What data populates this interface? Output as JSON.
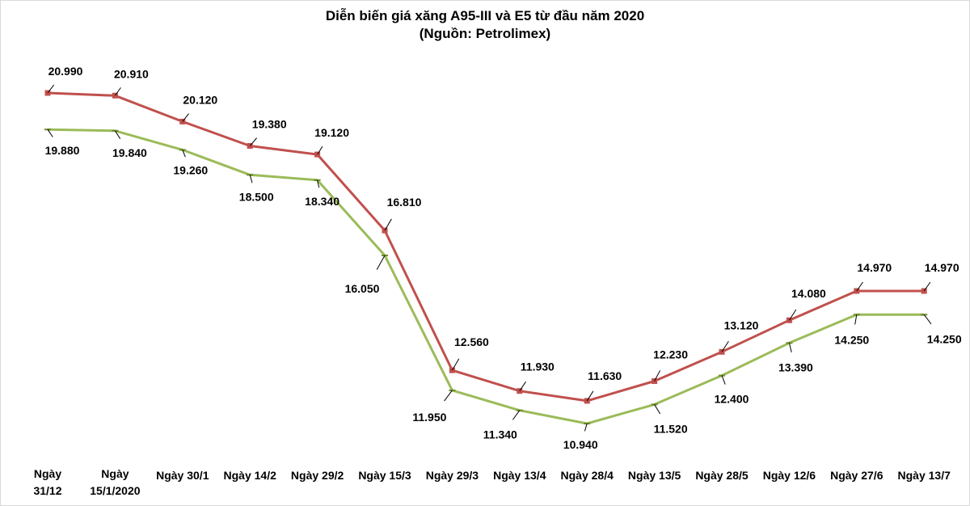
{
  "chart_data": {
    "type": "line",
    "title": "Diễn biến giá xăng A95-III  và E5 từ đầu năm 2020",
    "subtitle": "(Nguồn:  Petrolimex)",
    "categories": [
      [
        "Ngày",
        "31/12"
      ],
      [
        "Ngày",
        "15/1/2020"
      ],
      [
        "Ngày 30/1"
      ],
      [
        "Ngày 14/2"
      ],
      [
        "Ngày 29/2"
      ],
      [
        "Ngày 15/3"
      ],
      [
        "Ngày 29/3"
      ],
      [
        "Ngày 13/4"
      ],
      [
        "Ngày 28/4"
      ],
      [
        "Ngày 13/5"
      ],
      [
        "Ngày 28/5"
      ],
      [
        "Ngày 12/6"
      ],
      [
        "Ngày 27/6"
      ],
      [
        "Ngày 13/7"
      ]
    ],
    "ylim": [
      10000,
      21000
    ],
    "series": [
      {
        "name": "A95-III",
        "color": "#C0504D",
        "marker": "square",
        "values": [
          20990,
          20910,
          20120,
          19380,
          19120,
          16810,
          12560,
          11930,
          11630,
          12230,
          13120,
          14080,
          14970,
          14970
        ],
        "labels": [
          "20.990",
          "20.910",
          "20.120",
          "19.380",
          "19.120",
          "16.810",
          "12.560",
          "11.930",
          "11.630",
          "12.230",
          "13.120",
          "14.080",
          "14.970",
          "14.970"
        ]
      },
      {
        "name": "E5",
        "color": "#9BBB59",
        "marker": "dash",
        "values": [
          19880,
          19840,
          19260,
          18500,
          18340,
          16050,
          11950,
          11340,
          10940,
          11520,
          12400,
          13390,
          14250,
          14250
        ],
        "labels": [
          "19.880",
          "19.840",
          "19.260",
          "18.500",
          "18.340",
          "16.050",
          "11.950",
          "11.340",
          "10.940",
          "11.520",
          "12.400",
          "13.390",
          "14.250",
          "14.250"
        ]
      }
    ]
  }
}
